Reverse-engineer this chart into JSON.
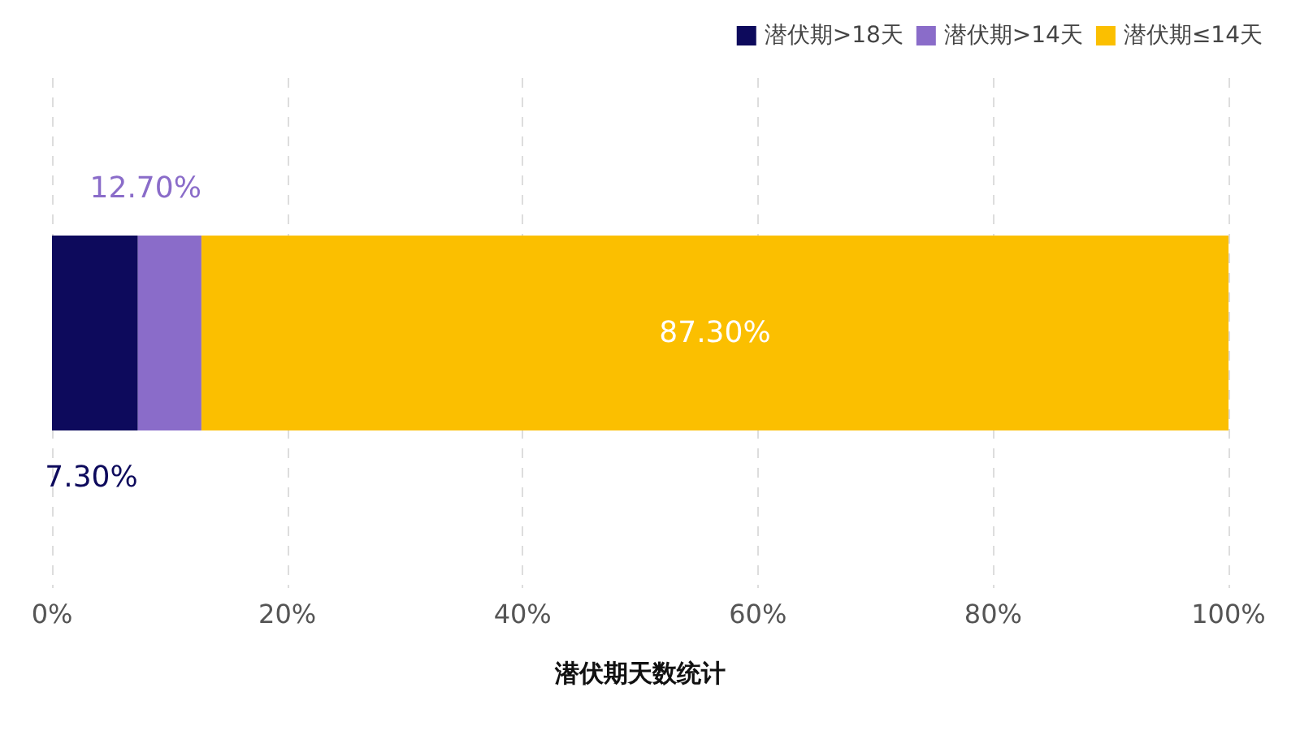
{
  "chart_data": {
    "type": "bar",
    "orientation": "horizontal",
    "stacked": true,
    "xlabel": "潜伏期天数统计",
    "categories": [
      null
    ],
    "series": [
      {
        "name": "潜伏期>18天",
        "color": "#0d0a5c",
        "values": [
          7.3
        ]
      },
      {
        "name": "潜伏期>14天",
        "color": "#8a6cc9",
        "values": [
          5.4
        ]
      },
      {
        "name": "潜伏期≤14天",
        "color": "#fbbf00",
        "values": [
          87.3
        ],
        "value_labels": [
          "87.30%"
        ]
      }
    ],
    "annotations": [
      "7.30%",
      "12.70%"
    ],
    "xlim": [
      0,
      100
    ],
    "xticks": [
      {
        "value": 0,
        "label": "0%"
      },
      {
        "value": 20,
        "label": "20%"
      },
      {
        "value": 40,
        "label": "40%"
      },
      {
        "value": 60,
        "label": "60%"
      },
      {
        "value": 80,
        "label": "80%"
      },
      {
        "value": 100,
        "label": "100%"
      }
    ],
    "grid": "x",
    "legend": "top right",
    "tick_labels": "x"
  }
}
